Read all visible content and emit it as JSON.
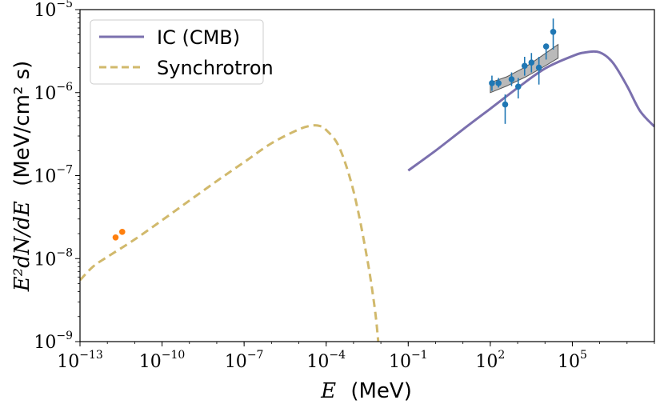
{
  "chart_data": {
    "type": "line",
    "xscale": "log",
    "yscale": "log",
    "xlim": [
      1e-13,
      100000000.0
    ],
    "ylim": [
      1e-09,
      1e-05
    ],
    "xlabel": {
      "var": "E",
      "unit": "(MeV)"
    },
    "ylabel": {
      "expr": "E²dN/dE",
      "unit": "(MeV/cm² s)"
    },
    "x_ticks": [
      {
        "base": "10",
        "exp": "−13",
        "value": 1e-13
      },
      {
        "base": "10",
        "exp": "−10",
        "value": 1e-10
      },
      {
        "base": "10",
        "exp": "−7",
        "value": 1e-07
      },
      {
        "base": "10",
        "exp": "−4",
        "value": 0.0001
      },
      {
        "base": "10",
        "exp": "−1",
        "value": 0.1
      },
      {
        "base": "10",
        "exp": "2",
        "value": 100.0
      },
      {
        "base": "10",
        "exp": "5",
        "value": 100000.0
      }
    ],
    "y_ticks": [
      {
        "base": "10",
        "exp": "−9",
        "value": 1e-09
      },
      {
        "base": "10",
        "exp": "−8",
        "value": 1e-08
      },
      {
        "base": "10",
        "exp": "−7",
        "value": 1e-07
      },
      {
        "base": "10",
        "exp": "−6",
        "value": 1e-06
      },
      {
        "base": "10",
        "exp": "−5",
        "value": 1e-05
      }
    ],
    "legend": {
      "position": "upper-left",
      "entries": [
        {
          "label": "IC (CMB)",
          "color": "#7b70ae",
          "style": "solid"
        },
        {
          "label": "Synchrotron",
          "color": "#d1b96c",
          "style": "dashed"
        }
      ]
    },
    "series": [
      {
        "name": "IC (CMB)",
        "color": "#7b70ae",
        "style": "solid",
        "points": [
          [
            0.1,
            1.15e-07
          ],
          [
            1,
            2e-07
          ],
          [
            10,
            3.6e-07
          ],
          [
            100,
            6.4e-07
          ],
          [
            1000,
            1.14e-06
          ],
          [
            10000,
            1.95e-06
          ],
          [
            100000,
            2.75e-06
          ],
          [
            300000,
            3.05e-06
          ],
          [
            1000000,
            3.05e-06
          ],
          [
            3000000,
            2.3e-06
          ],
          [
            10000000,
            1.2e-06
          ],
          [
            30000000,
            6e-07
          ],
          [
            100000000,
            3.9e-07
          ]
        ]
      },
      {
        "name": "Synchrotron",
        "color": "#d1b96c",
        "style": "dashed",
        "points": [
          [
            1e-13,
            5.5e-09
          ],
          [
            3e-13,
            8e-09
          ],
          [
            1e-12,
            1.05e-08
          ],
          [
            1e-11,
            1.7e-08
          ],
          [
            1e-10,
            2.9e-08
          ],
          [
            1e-09,
            5e-08
          ],
          [
            1e-08,
            8.6e-08
          ],
          [
            1e-07,
            1.45e-07
          ],
          [
            1e-06,
            2.45e-07
          ],
          [
            1e-05,
            3.6e-07
          ],
          [
            3e-05,
            4e-07
          ],
          [
            6e-05,
            3.95e-07
          ],
          [
            0.0001,
            3.55e-07
          ],
          [
            0.0003,
            2.2e-07
          ],
          [
            0.001,
            6.5e-08
          ],
          [
            0.003,
            1.1e-08
          ],
          [
            0.006,
            2.5e-09
          ],
          [
            0.008,
            1e-09
          ]
        ]
      }
    ],
    "radio_points": {
      "color": "#ff7f0e",
      "points": [
        [
          2e-12,
          1.8e-08
        ],
        [
          3.5e-12,
          2.1e-08
        ]
      ]
    },
    "gamma_points": {
      "color": "#1f77b4",
      "points": [
        {
          "x": 115,
          "y": 1.3e-06,
          "ylo": 1.05e-06,
          "yhi": 1.6e-06
        },
        {
          "x": 200,
          "y": 1.3e-06,
          "ylo": 1.15e-06,
          "yhi": 1.5e-06
        },
        {
          "x": 350,
          "y": 7.2e-07,
          "ylo": 4.2e-07,
          "yhi": 9.5e-07
        },
        {
          "x": 600,
          "y": 1.45e-06,
          "ylo": 1.2e-06,
          "yhi": 1.75e-06
        },
        {
          "x": 1050,
          "y": 1.18e-06,
          "ylo": 8.5e-07,
          "yhi": 1.5e-06
        },
        {
          "x": 1800,
          "y": 2.1e-06,
          "ylo": 1.6e-06,
          "yhi": 2.7e-06
        },
        {
          "x": 3200,
          "y": 2.3e-06,
          "ylo": 1.75e-06,
          "yhi": 3e-06
        },
        {
          "x": 6000,
          "y": 2e-06,
          "ylo": 1.25e-06,
          "yhi": 2.7e-06
        },
        {
          "x": 11000,
          "y": 3.6e-06,
          "ylo": 2.5e-06,
          "yhi": 3.7e-06
        },
        {
          "x": 20000,
          "y": 5.4e-06,
          "ylo": 3.3e-06,
          "yhi": 7.8e-06
        }
      ]
    },
    "butterfly_band": {
      "color": "#8c8c8c",
      "edge": "#555555",
      "x": [
        100,
        400,
        2000,
        8000,
        30000
      ],
      "ylow": [
        1e-06,
        1.2e-06,
        1.55e-06,
        2e-06,
        2.6e-06
      ],
      "yhigh": [
        1.32e-06,
        1.55e-06,
        2.05e-06,
        2.8e-06,
        3.8e-06
      ]
    }
  }
}
